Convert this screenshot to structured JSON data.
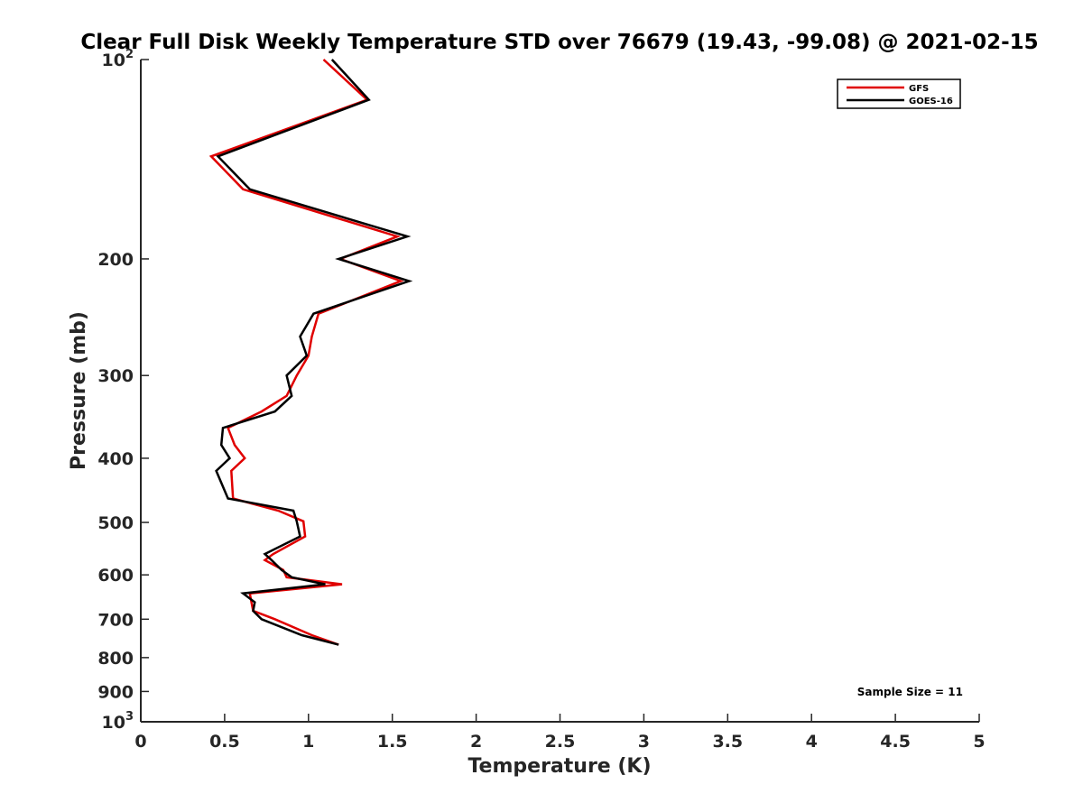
{
  "chart_data": {
    "type": "line",
    "title": "Clear Full Disk Weekly Temperature STD over 76679 (19.43, -99.08) @ 2021-02-15",
    "xlabel": "Temperature (K)",
    "ylabel": "Pressure (mb)",
    "xlim": [
      0,
      5
    ],
    "ylim": [
      100,
      1000
    ],
    "y_scale": "log",
    "y_reversed": true,
    "x_ticks": [
      "0",
      "0.5",
      "1",
      "1.5",
      "2",
      "2.5",
      "3",
      "3.5",
      "4",
      "4.5",
      "5"
    ],
    "y_ticks": [
      {
        "value": 100,
        "base": "10",
        "exp": "2"
      },
      {
        "value": 200,
        "label": "200"
      },
      {
        "value": 300,
        "label": "300"
      },
      {
        "value": 400,
        "label": "400"
      },
      {
        "value": 500,
        "label": "500"
      },
      {
        "value": 600,
        "label": "600"
      },
      {
        "value": 700,
        "label": "700"
      },
      {
        "value": 800,
        "label": "800"
      },
      {
        "value": 900,
        "label": "900"
      },
      {
        "value": 1000,
        "base": "10",
        "exp": "3"
      }
    ],
    "grid": false,
    "legend_position": "top-right",
    "series": [
      {
        "name": "GFS",
        "color": "#e00000",
        "points": [
          [
            1.09,
            100
          ],
          [
            1.35,
            115
          ],
          [
            0.42,
            140
          ],
          [
            0.61,
            157
          ],
          [
            1.53,
            185
          ],
          [
            1.19,
            200
          ],
          [
            1.55,
            216
          ],
          [
            1.06,
            242
          ],
          [
            1.02,
            262
          ],
          [
            1.0,
            280
          ],
          [
            0.93,
            300
          ],
          [
            0.87,
            322
          ],
          [
            0.72,
            340
          ],
          [
            0.52,
            360
          ],
          [
            0.56,
            382
          ],
          [
            0.62,
            400
          ],
          [
            0.54,
            418
          ],
          [
            0.55,
            460
          ],
          [
            0.82,
            480
          ],
          [
            0.97,
            498
          ],
          [
            0.98,
            525
          ],
          [
            0.79,
            558
          ],
          [
            0.74,
            570
          ],
          [
            0.85,
            590
          ],
          [
            0.87,
            605
          ],
          [
            1.2,
            620
          ],
          [
            0.65,
            640
          ],
          [
            0.66,
            660
          ],
          [
            0.67,
            680
          ],
          [
            0.8,
            700
          ],
          [
            1.02,
            740
          ],
          [
            1.18,
            765
          ]
        ]
      },
      {
        "name": "GOES-16",
        "color": "#000000",
        "points": [
          [
            1.14,
            100
          ],
          [
            1.36,
            115
          ],
          [
            0.46,
            140
          ],
          [
            0.65,
            157
          ],
          [
            1.59,
            185
          ],
          [
            1.18,
            200
          ],
          [
            1.6,
            216
          ],
          [
            1.03,
            242
          ],
          [
            0.95,
            262
          ],
          [
            0.99,
            280
          ],
          [
            0.87,
            300
          ],
          [
            0.9,
            322
          ],
          [
            0.8,
            340
          ],
          [
            0.49,
            360
          ],
          [
            0.48,
            382
          ],
          [
            0.53,
            400
          ],
          [
            0.45,
            418
          ],
          [
            0.52,
            460
          ],
          [
            0.91,
            480
          ],
          [
            0.93,
            498
          ],
          [
            0.95,
            525
          ],
          [
            0.74,
            558
          ],
          [
            0.78,
            570
          ],
          [
            0.84,
            590
          ],
          [
            0.9,
            605
          ],
          [
            1.1,
            620
          ],
          [
            0.61,
            640
          ],
          [
            0.68,
            660
          ],
          [
            0.67,
            680
          ],
          [
            0.72,
            700
          ],
          [
            0.96,
            740
          ],
          [
            1.18,
            765
          ]
        ]
      }
    ],
    "annotations": [
      {
        "text": "Sample Size = 11"
      }
    ]
  }
}
